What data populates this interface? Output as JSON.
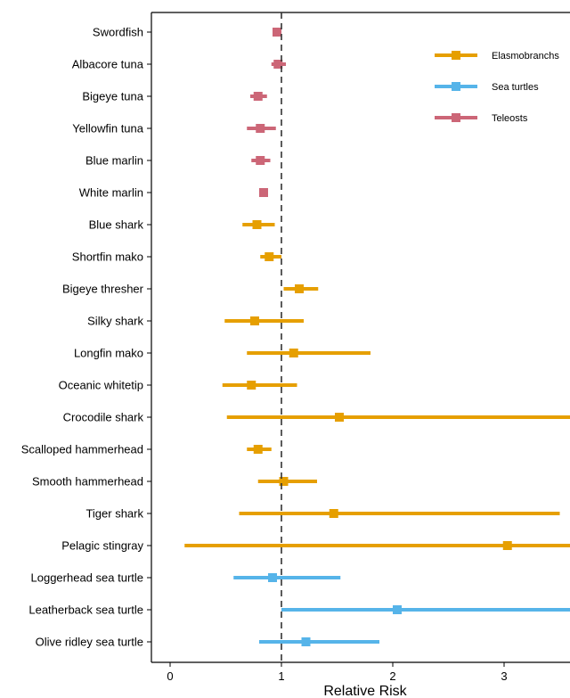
{
  "chart_data": {
    "type": "scatter",
    "subtype": "forest-plot",
    "title": "",
    "xlabel": "Relative Risk",
    "ylabel": "",
    "xlim": [
      -0.2,
      3.62
    ],
    "xticks": [
      0,
      1,
      2,
      3
    ],
    "reference_line": 1,
    "grid": false,
    "legend_position": "top-right",
    "groups": [
      {
        "name": "Elasmobranchs",
        "color": "#E69F00"
      },
      {
        "name": "Sea turtles",
        "color": "#56B4E9"
      },
      {
        "name": "Teleosts",
        "color": "#CC6677"
      }
    ],
    "rows": [
      {
        "label": "Swordfish",
        "group": 2,
        "est": 0.96,
        "lo": 0.92,
        "hi": 1.0
      },
      {
        "label": "Albacore tuna",
        "group": 2,
        "est": 0.97,
        "lo": 0.91,
        "hi": 1.04
      },
      {
        "label": "Bigeye tuna",
        "group": 2,
        "est": 0.79,
        "lo": 0.72,
        "hi": 0.87
      },
      {
        "label": "Yellowfin tuna",
        "group": 2,
        "est": 0.81,
        "lo": 0.69,
        "hi": 0.95
      },
      {
        "label": "Blue marlin",
        "group": 2,
        "est": 0.81,
        "lo": 0.73,
        "hi": 0.9
      },
      {
        "label": "White marlin",
        "group": 2,
        "est": 0.84,
        "lo": 0.8,
        "hi": 0.88
      },
      {
        "label": "Blue shark",
        "group": 0,
        "est": 0.78,
        "lo": 0.65,
        "hi": 0.94
      },
      {
        "label": "Shortfin mako",
        "group": 0,
        "est": 0.89,
        "lo": 0.81,
        "hi": 1.0
      },
      {
        "label": "Bigeye thresher",
        "group": 0,
        "est": 1.16,
        "lo": 1.02,
        "hi": 1.33
      },
      {
        "label": "Silky shark",
        "group": 0,
        "est": 0.76,
        "lo": 0.49,
        "hi": 1.2
      },
      {
        "label": "Longfin mako",
        "group": 0,
        "est": 1.11,
        "lo": 0.69,
        "hi": 1.8
      },
      {
        "label": "Oceanic whitetip",
        "group": 0,
        "est": 0.73,
        "lo": 0.47,
        "hi": 1.14
      },
      {
        "label": "Crocodile shark",
        "group": 0,
        "est": 1.52,
        "lo": 0.51,
        "hi": 3.62
      },
      {
        "label": "Scalloped hammerhead",
        "group": 0,
        "est": 0.79,
        "lo": 0.69,
        "hi": 0.91
      },
      {
        "label": "Smooth hammerhead",
        "group": 0,
        "est": 1.02,
        "lo": 0.79,
        "hi": 1.32
      },
      {
        "label": "Tiger shark",
        "group": 0,
        "est": 1.47,
        "lo": 0.62,
        "hi": 3.5
      },
      {
        "label": "Pelagic stingray",
        "group": 0,
        "est": 3.03,
        "lo": 0.13,
        "hi": 3.62
      },
      {
        "label": "Loggerhead sea turtle",
        "group": 1,
        "est": 0.92,
        "lo": 0.57,
        "hi": 1.53
      },
      {
        "label": "Leatherback sea turtle",
        "group": 1,
        "est": 2.04,
        "lo": 1.0,
        "hi": 3.62
      },
      {
        "label": "Olive ridley sea turtle",
        "group": 1,
        "est": 1.22,
        "lo": 0.8,
        "hi": 1.88
      }
    ]
  }
}
